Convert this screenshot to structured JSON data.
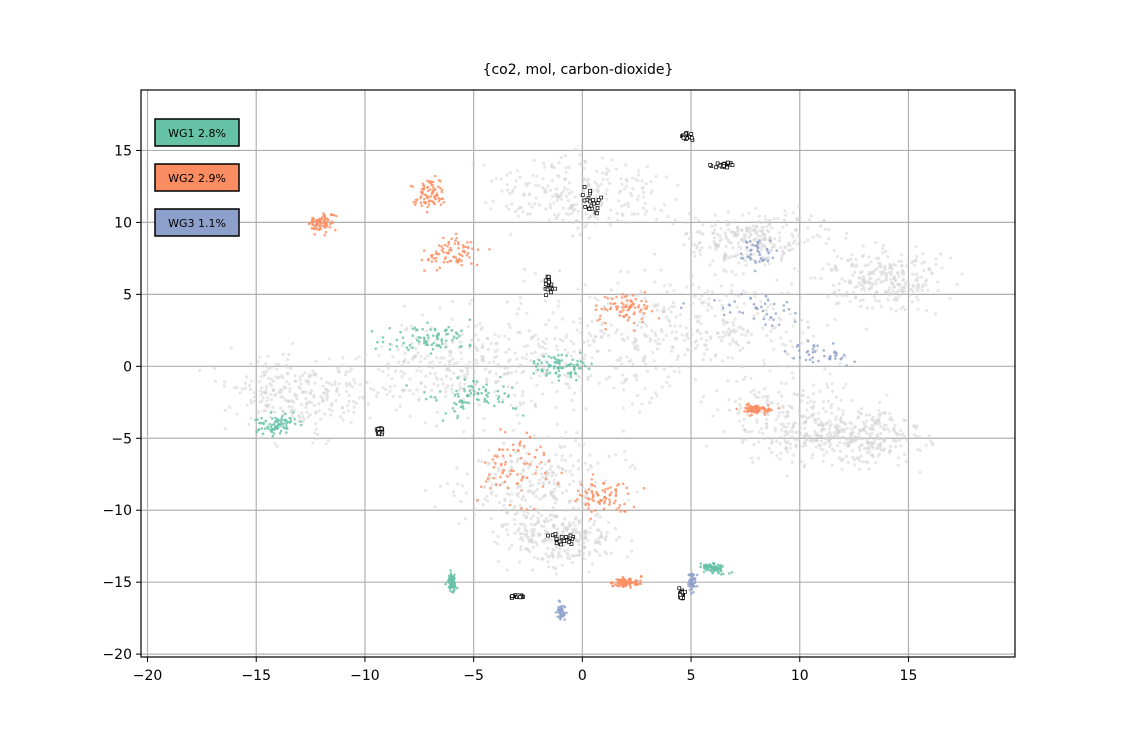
{
  "chart_data": {
    "type": "scatter",
    "title": "{co2, mol, carbon-dioxide}",
    "xlabel": "",
    "ylabel": "",
    "xlim": [
      -20.3,
      19.9
    ],
    "ylim": [
      -20.2,
      19.2
    ],
    "x_ticks": [
      -20,
      -15,
      -10,
      -5,
      0,
      5,
      10,
      15
    ],
    "y_ticks": [
      -20,
      -15,
      -10,
      -5,
      0,
      5,
      10,
      15
    ],
    "x_tick_labels": [
      "−20",
      "−15",
      "−10",
      "−5",
      "0",
      "5",
      "10",
      "15"
    ],
    "y_tick_labels": [
      "−20",
      "−15",
      "−10",
      "−5",
      "0",
      "5",
      "10",
      "15"
    ],
    "grid": true,
    "legend_position": "top-left",
    "legend": [
      {
        "label": "WG1 2.8%",
        "color": "#66c2a5"
      },
      {
        "label": "WG2 2.9%",
        "color": "#fc8d62"
      },
      {
        "label": "WG3 1.1%",
        "color": "#8da0cb"
      }
    ],
    "series": [
      {
        "color": "#d3d3d3",
        "role": "background points (all)",
        "clusters": [
          [
            0,
            1,
            10,
            7,
            0.3
          ],
          [
            6,
            3,
            8,
            6,
            0.3
          ],
          [
            -6,
            0,
            7,
            5,
            0.3
          ],
          [
            -2,
            -8,
            6,
            5,
            0.3
          ],
          [
            10,
            -4,
            5,
            4,
            0
          ],
          [
            -13,
            -2,
            5,
            4,
            0
          ],
          [
            0,
            12,
            6,
            4,
            0
          ],
          [
            14,
            6,
            4,
            3,
            0
          ],
          [
            8,
            9,
            5,
            3,
            0
          ],
          [
            -1,
            -12,
            4,
            3,
            0
          ],
          [
            13,
            -5,
            4,
            3,
            0
          ]
        ]
      },
      {
        "color": "#66c2a5",
        "role": "WG1 points",
        "clusters": [
          [
            -7,
            2,
            3,
            1.5,
            0
          ],
          [
            -1,
            0,
            2,
            1.5,
            0
          ],
          [
            -14,
            -4,
            1.5,
            1,
            0.3
          ],
          [
            -5,
            -2,
            3,
            2,
            0
          ],
          [
            6,
            -14,
            1,
            0.5,
            -0.5
          ],
          [
            -6,
            -15,
            0.3,
            0.8,
            0
          ]
        ]
      },
      {
        "color": "#fc8d62",
        "role": "WG2 points",
        "clusters": [
          [
            -3,
            -7,
            3,
            4,
            0
          ],
          [
            2,
            4,
            2,
            2,
            -0.5
          ],
          [
            -6,
            8,
            2,
            2,
            0
          ],
          [
            -12,
            10,
            1,
            1,
            -0.6
          ],
          [
            8,
            -3,
            1,
            0.5,
            0
          ],
          [
            2,
            -15,
            1,
            0.5,
            0
          ],
          [
            1,
            -9,
            2,
            2,
            0
          ],
          [
            -7,
            12,
            1,
            2,
            0
          ]
        ]
      },
      {
        "color": "#8da0cb",
        "role": "WG3 points",
        "clusters": [
          [
            8,
            4,
            4,
            2,
            -0.2
          ],
          [
            11,
            1,
            2,
            1,
            -0.2
          ],
          [
            8,
            8,
            1.5,
            1.5,
            0
          ],
          [
            5,
            -15,
            0.4,
            1,
            0
          ],
          [
            -1,
            -17,
            0.3,
            1,
            0
          ]
        ]
      },
      {
        "color": "#000000",
        "role": "black-outlined marker points",
        "clusters": [
          [
            0.5,
            11.5,
            0.8,
            1.5,
            0
          ],
          [
            -1.5,
            5.5,
            0.4,
            1,
            0
          ],
          [
            -1,
            -12,
            1,
            0.8,
            0
          ],
          [
            6.5,
            14,
            0.8,
            0.3,
            0
          ],
          [
            4.8,
            16,
            0.4,
            0.4,
            0
          ],
          [
            -3,
            -16,
            0.5,
            0.2,
            0
          ],
          [
            4.6,
            -15.8,
            0.2,
            0.6,
            0
          ],
          [
            -9.3,
            -4.5,
            0.3,
            0.3,
            0
          ]
        ]
      }
    ]
  }
}
